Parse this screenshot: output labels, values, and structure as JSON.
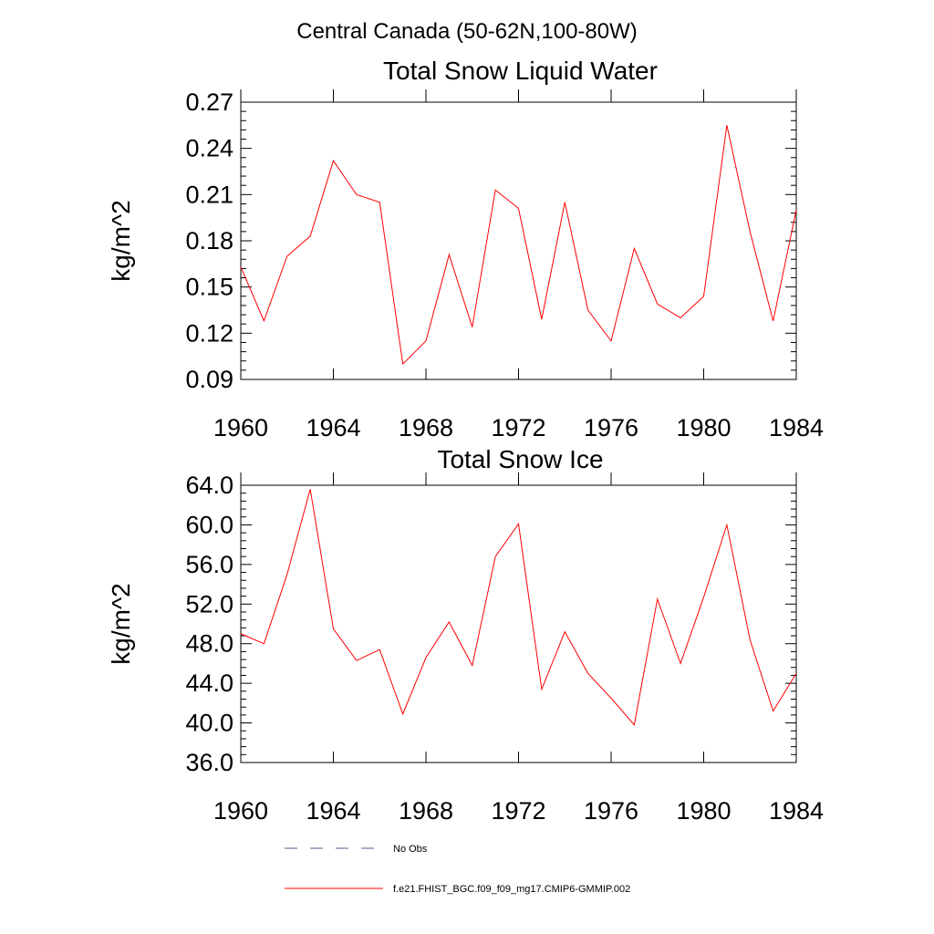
{
  "figure_title": "Central Canada (50-62N,100-80W)",
  "chart_data": [
    {
      "type": "line",
      "title": "Total Snow Liquid Water",
      "xlabel": "",
      "ylabel": "kg/m^2",
      "xlim": [
        1960,
        1984
      ],
      "ylim": [
        0.09,
        0.27
      ],
      "x_ticks": [
        "1960",
        "1964",
        "1968",
        "1972",
        "1976",
        "1980",
        "1984"
      ],
      "y_ticks": [
        "0.09",
        "0.12",
        "0.15",
        "0.18",
        "0.21",
        "0.24",
        "0.27"
      ],
      "x": [
        1960,
        1961,
        1962,
        1963,
        1964,
        1965,
        1966,
        1967,
        1968,
        1969,
        1970,
        1971,
        1972,
        1973,
        1974,
        1975,
        1976,
        1977,
        1978,
        1979,
        1980,
        1981,
        1982,
        1983,
        1984
      ],
      "series": [
        {
          "name": "f.e21.FHIST_BGC.f09_f09_mg17.CMIP6-GMMIP.002",
          "color": "#ff0000",
          "values": [
            0.163,
            0.128,
            0.17,
            0.183,
            0.232,
            0.21,
            0.205,
            0.1,
            0.115,
            0.171,
            0.124,
            0.213,
            0.201,
            0.129,
            0.205,
            0.135,
            0.115,
            0.175,
            0.139,
            0.13,
            0.144,
            0.255,
            0.186,
            0.128,
            0.2
          ]
        }
      ]
    },
    {
      "type": "line",
      "title": "Total Snow Ice",
      "xlabel": "",
      "ylabel": "kg/m^2",
      "xlim": [
        1960,
        1984
      ],
      "ylim": [
        36.0,
        64.0
      ],
      "x_ticks": [
        "1960",
        "1964",
        "1968",
        "1972",
        "1976",
        "1980",
        "1984"
      ],
      "y_ticks": [
        "36.0",
        "40.0",
        "44.0",
        "48.0",
        "52.0",
        "56.0",
        "60.0",
        "64.0"
      ],
      "x": [
        1960,
        1961,
        1962,
        1963,
        1964,
        1965,
        1966,
        1967,
        1968,
        1969,
        1970,
        1971,
        1972,
        1973,
        1974,
        1975,
        1976,
        1977,
        1978,
        1979,
        1980,
        1981,
        1982,
        1983,
        1984
      ],
      "series": [
        {
          "name": "f.e21.FHIST_BGC.f09_f09_mg17.CMIP6-GMMIP.002",
          "color": "#ff0000",
          "values": [
            49.0,
            48.0,
            55.0,
            63.6,
            49.5,
            46.3,
            47.4,
            40.9,
            46.6,
            50.2,
            45.8,
            56.8,
            60.1,
            43.4,
            49.2,
            45.0,
            42.5,
            39.8,
            52.5,
            46.0,
            52.7,
            60.0,
            48.4,
            41.2,
            45.0
          ]
        }
      ]
    }
  ],
  "legend": {
    "placement": "bottom",
    "items": [
      {
        "label": "No Obs",
        "color": "#5a5a8c",
        "style": "dashed"
      },
      {
        "label": "f.e21.FHIST_BGC.f09_f09_mg17.CMIP6-GMMIP.002",
        "color": "#ff0000",
        "style": "solid"
      }
    ]
  }
}
